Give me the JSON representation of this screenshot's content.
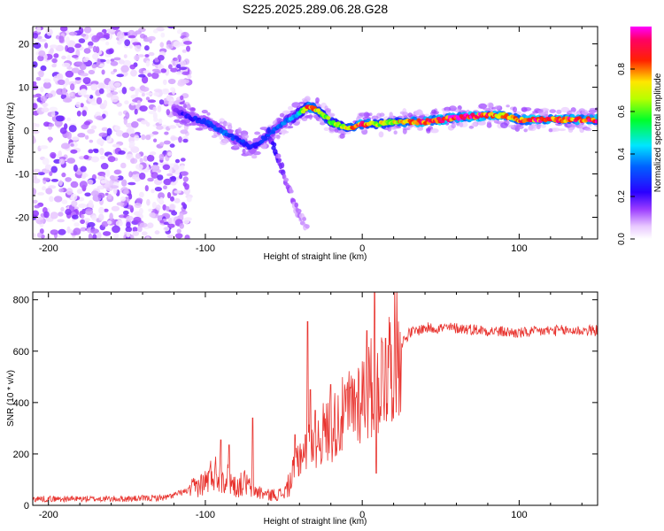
{
  "figure_title": "S225.2025.289.06.28.G28",
  "colors": {
    "snr_line": "#e8322d",
    "axes": "#000000",
    "background": "#ffffff"
  },
  "chart_data": [
    {
      "type": "heatmap",
      "title": "S225.2025.289.06.28.G28",
      "xlabel": "Height of straight line (km)",
      "ylabel": "Frequency (Hz)",
      "xlim": [
        -210,
        150
      ],
      "ylim": [
        -25,
        24
      ],
      "x_ticks": [
        -200,
        -100,
        0,
        100
      ],
      "y_ticks": [
        -20,
        -10,
        0,
        10,
        20
      ],
      "colorbar": {
        "label": "Normalized spectral amplitude",
        "range": [
          0,
          1
        ],
        "ticks": [
          0.0,
          0.2,
          0.4,
          0.6,
          0.8
        ],
        "tick_labels": [
          "0.0",
          "0.2",
          "0.4",
          "0.6",
          "0.8"
        ],
        "colormap": "rainbow (white-violet-blue-cyan-green-yellow-red-magenta)"
      },
      "ridge": {
        "description": "Dominant frequency ridge vs. height",
        "x": [
          -120,
          -110,
          -100,
          -90,
          -80,
          -70,
          -60,
          -50,
          -40,
          -35,
          -30,
          -20,
          -10,
          0,
          10,
          20,
          40,
          60,
          80,
          90,
          100,
          110,
          130,
          150
        ],
        "y": [
          5,
          3,
          2,
          0,
          -2,
          -4,
          -1,
          2,
          4,
          5.5,
          5,
          2,
          0.5,
          1.5,
          1.5,
          2,
          2,
          3,
          3.5,
          3.5,
          2.5,
          2.5,
          2.5,
          2.5
        ],
        "amplitude": [
          0.15,
          0.25,
          0.3,
          0.35,
          0.3,
          0.25,
          0.3,
          0.35,
          0.45,
          0.85,
          0.75,
          0.6,
          0.7,
          0.9,
          0.7,
          0.7,
          0.9,
          0.95,
          0.9,
          0.8,
          0.85,
          0.9,
          0.9,
          0.9
        ]
      },
      "branch": {
        "description": "Secondary descending branch",
        "x": [
          -60,
          -55,
          -50,
          -45,
          -40,
          -35
        ],
        "y": [
          0,
          -5,
          -10,
          -15,
          -20,
          -22
        ],
        "amplitude": [
          0.25,
          0.2,
          0.15,
          0.12,
          0.1,
          0.08
        ]
      },
      "noise_region": {
        "x_range": [
          -210,
          -110
        ],
        "y_range": [
          -25,
          24
        ],
        "amplitude_range": [
          0.02,
          0.18
        ]
      }
    },
    {
      "type": "line",
      "xlabel": "Height of straight line (km)",
      "ylabel": "SNR (10 * v/v)",
      "xlim": [
        -210,
        150
      ],
      "ylim": [
        0,
        830
      ],
      "x_ticks": [
        -200,
        -100,
        0,
        100
      ],
      "y_ticks": [
        0,
        200,
        400,
        600,
        800
      ],
      "series": [
        {
          "name": "SNR",
          "x": [
            -210,
            -180,
            -150,
            -125,
            -110,
            -100,
            -95,
            -90,
            -85,
            -80,
            -75,
            -70,
            -60,
            -50,
            -45,
            -40,
            -35,
            -30,
            -25,
            -20,
            -15,
            -10,
            -5,
            0,
            5,
            10,
            15,
            20,
            25,
            30,
            40,
            60,
            80,
            100,
            120,
            150
          ],
          "y": [
            25,
            25,
            25,
            30,
            60,
            90,
            130,
            120,
            100,
            70,
            90,
            60,
            40,
            45,
            100,
            200,
            220,
            250,
            280,
            300,
            330,
            360,
            400,
            430,
            450,
            480,
            520,
            590,
            630,
            670,
            690,
            690,
            680,
            670,
            680,
            680
          ],
          "spikes": [
            {
              "x": -90,
              "y": 255
            },
            {
              "x": -85,
              "y": 235
            },
            {
              "x": -70,
              "y": 340
            },
            {
              "x": -43,
              "y": 275
            },
            {
              "x": -35,
              "y": 715
            },
            {
              "x": -33,
              "y": 450
            },
            {
              "x": -30,
              "y": 370
            },
            {
              "x": -20,
              "y": 470
            },
            {
              "x": -10,
              "y": 450
            },
            {
              "x": 3,
              "y": 680
            },
            {
              "x": 8,
              "y": 830
            },
            {
              "x": 9,
              "y": 125
            },
            {
              "x": 15,
              "y": 650
            }
          ]
        }
      ]
    }
  ]
}
